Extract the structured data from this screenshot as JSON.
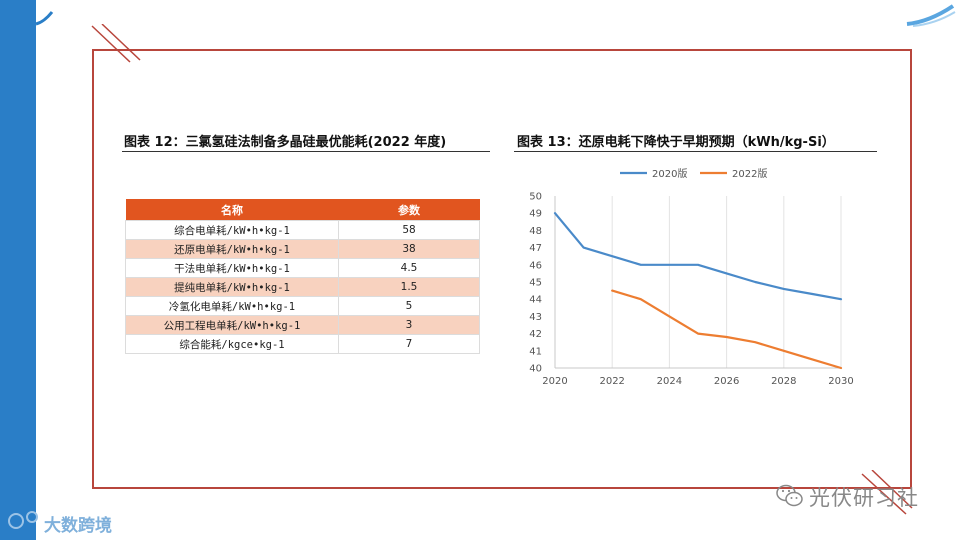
{
  "left_panel": {
    "title": "图表 12：三氯氢硅法制备多晶硅最优能耗(2022 年度)",
    "headers": [
      "名称",
      "参数"
    ],
    "rows": [
      {
        "name": "综合电单耗/kW•h•kg-1",
        "value": "58"
      },
      {
        "name": "还原电单耗/kW•h•kg-1",
        "value": "38"
      },
      {
        "name": "干法电单耗/kW•h•kg-1",
        "value": "4.5"
      },
      {
        "name": "提纯电单耗/kW•h•kg-1",
        "value": "1.5"
      },
      {
        "name": "冷氢化电单耗/kW•h•kg-1",
        "value": "5"
      },
      {
        "name": "公用工程电单耗/kW•h•kg-1",
        "value": "3"
      },
      {
        "name": "综合能耗/kgce•kg-1",
        "value": "7"
      }
    ]
  },
  "right_panel": {
    "title": "图表 13：还原电耗下降快于早期预期（kWh/kg-Si）"
  },
  "chart_data": {
    "type": "line",
    "title": "图表 13：还原电耗下降快于早期预期（kWh/kg-Si）",
    "x_ticks": [
      2020,
      2022,
      2024,
      2026,
      2028,
      2030
    ],
    "y_ticks": [
      40,
      41,
      42,
      43,
      44,
      45,
      46,
      47,
      48,
      49,
      50
    ],
    "xlim": [
      2020,
      2030
    ],
    "ylim": [
      40,
      50
    ],
    "grid": "vertical",
    "legend": "top",
    "series": [
      {
        "name": "2020版",
        "color": "#4a8ac9",
        "x": [
          2020,
          2021,
          2022,
          2023,
          2024,
          2025,
          2026,
          2027,
          2028,
          2029,
          2030
        ],
        "y": [
          49,
          47,
          46.5,
          46,
          46,
          46,
          45.5,
          45,
          44.6,
          44.3,
          44
        ]
      },
      {
        "name": "2022版",
        "color": "#ed7d31",
        "x": [
          2022,
          2023,
          2024,
          2025,
          2026,
          2027,
          2028,
          2029,
          2030
        ],
        "y": [
          44.5,
          44,
          43,
          42,
          41.8,
          41.5,
          41,
          40.5,
          40
        ]
      }
    ]
  },
  "watermarks": {
    "left": "大数跨境",
    "right": "光伏研习社"
  }
}
